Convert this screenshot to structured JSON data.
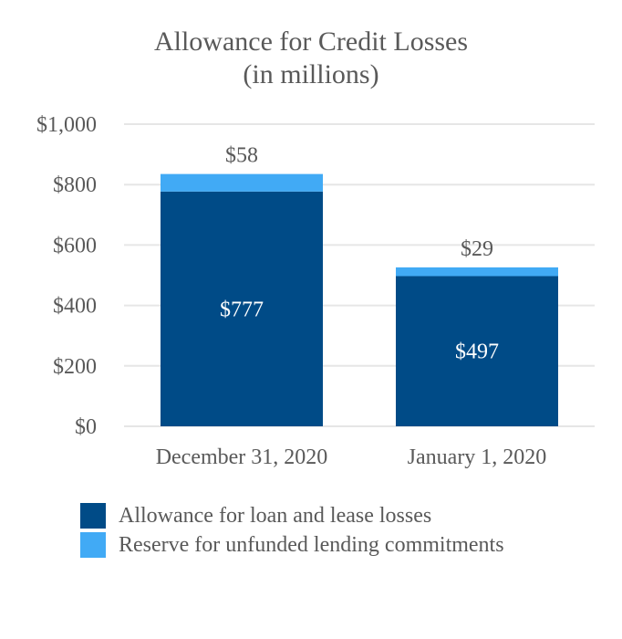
{
  "chart_data": {
    "type": "bar",
    "stacked": true,
    "title": "Allowance for Credit Losses",
    "subtitle": "(in millions)",
    "categories": [
      "December 31, 2020",
      "January 1, 2020"
    ],
    "series": [
      {
        "name": "Allowance for loan and lease losses",
        "values": [
          777,
          497
        ],
        "labels": [
          "$777",
          "$497"
        ],
        "color": "#004b87"
      },
      {
        "name": "Reserve for unfunded lending commitments",
        "values": [
          58,
          29
        ],
        "labels": [
          "$58",
          "$29"
        ],
        "color": "#41aaf5"
      }
    ],
    "ylim": [
      0,
      1000
    ],
    "yticks": [
      0,
      200,
      400,
      600,
      800,
      1000
    ],
    "ytick_labels": [
      "$0",
      "$200",
      "$400",
      "$600",
      "$800",
      "$1,000"
    ],
    "grid": true,
    "grid_color": "#e6e6e6",
    "legend_placement": "bottom-left",
    "xlabel": "",
    "ylabel": ""
  }
}
